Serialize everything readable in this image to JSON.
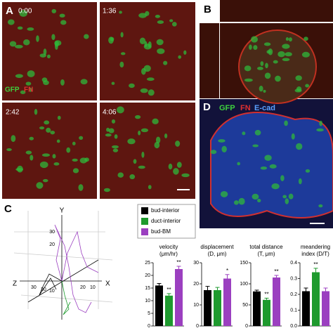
{
  "panels": {
    "a": {
      "label": "A",
      "times": [
        "0:00",
        "1:36",
        "2:42",
        "4:06"
      ],
      "stain": [
        "GFP",
        "FN"
      ]
    },
    "b": {
      "label": "B"
    },
    "c": {
      "label": "C",
      "axes": [
        "Y",
        "X",
        "Z"
      ],
      "y_ticks": [
        "30",
        "20"
      ],
      "z_ticks": [
        "30",
        "20",
        "10"
      ],
      "x_ticks": [
        "20",
        "10"
      ]
    },
    "d": {
      "label": "D",
      "stain": [
        "GFP",
        "FN",
        "E-cad"
      ]
    }
  },
  "legend": [
    {
      "name": "bud-interior",
      "color": "#000000"
    },
    {
      "name": "duct-interior",
      "color": "#1e9a2e"
    },
    {
      "name": "bud-BM",
      "color": "#9b3fc0"
    }
  ],
  "chart_data": [
    {
      "type": "bar",
      "title": [
        "velocity",
        "(μm/hr)"
      ],
      "values": [
        16,
        12,
        22.5
      ],
      "errors": [
        0.8,
        0.8,
        1.1
      ],
      "annotations": [
        null,
        "**",
        "**"
      ],
      "colors": [
        "#000000",
        "#1e9a2e",
        "#9b3fc0"
      ],
      "ylim": [
        0,
        25
      ],
      "yticks": [
        0,
        5,
        10,
        15,
        20,
        25
      ]
    },
    {
      "type": "bar",
      "title": [
        "displacement",
        "(D, μm)"
      ],
      "values": [
        17,
        17,
        22.5
      ],
      "errors": [
        1.8,
        1.3,
        1.9
      ],
      "annotations": [
        null,
        null,
        "*"
      ],
      "colors": [
        "#000000",
        "#1e9a2e",
        "#9b3fc0"
      ],
      "ylim": [
        0,
        30
      ],
      "yticks": [
        0,
        10,
        20,
        30
      ]
    },
    {
      "type": "bar",
      "title": [
        "total distance",
        "(T, μm)"
      ],
      "values": [
        82,
        62,
        115
      ],
      "errors": [
        3,
        4,
        5
      ],
      "annotations": [
        null,
        "**",
        "**"
      ],
      "colors": [
        "#000000",
        "#1e9a2e",
        "#9b3fc0"
      ],
      "ylim": [
        0,
        150
      ],
      "yticks": [
        0,
        50,
        100,
        150
      ]
    },
    {
      "type": "bar",
      "title": [
        "meandering",
        "index (D/T)"
      ],
      "values": [
        0.22,
        0.34,
        0.22
      ],
      "errors": [
        0.02,
        0.025,
        0.02
      ],
      "annotations": [
        null,
        "**",
        null
      ],
      "colors": [
        "#000000",
        "#1e9a2e",
        "#9b3fc0"
      ],
      "ylim": [
        0,
        0.4
      ],
      "yticks": [
        {
          "value": 0,
          "label": "0.0"
        },
        0.1,
        0.2,
        0.3,
        0.4
      ]
    }
  ]
}
